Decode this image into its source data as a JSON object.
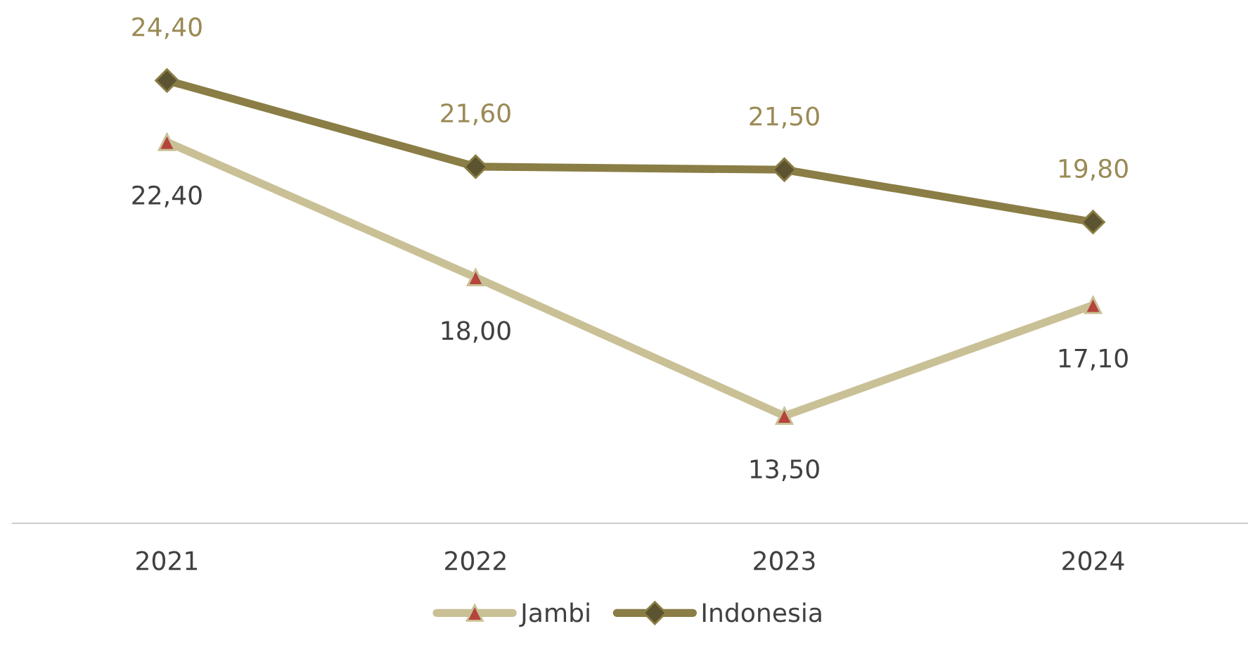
{
  "chart_data": {
    "type": "line",
    "categories": [
      "2021",
      "2022",
      "2023",
      "2024"
    ],
    "series": [
      {
        "name": "Jambi",
        "color": "#c9c096",
        "colors": [
          "#b5443c",
          "#b5443c",
          "#b5443c",
          "#b5443c"
        ],
        "marker": "triangle",
        "values": [
          22.4,
          18.0,
          13.5,
          17.1
        ],
        "value_labels": [
          "22,40",
          "18,00",
          "13,50",
          "17,10"
        ]
      },
      {
        "name": "Indonesia",
        "color": "#8a7d45",
        "colors": [
          "#5c5330",
          "#5c5330",
          "#5c5330",
          "#5c5330"
        ],
        "marker": "diamond",
        "values": [
          24.4,
          21.6,
          21.5,
          19.8
        ],
        "value_labels": [
          "24,40",
          "21,60",
          "21,50",
          "19,80"
        ]
      }
    ],
    "tick_labels": "x",
    "grid": false,
    "legend": "bottom"
  }
}
